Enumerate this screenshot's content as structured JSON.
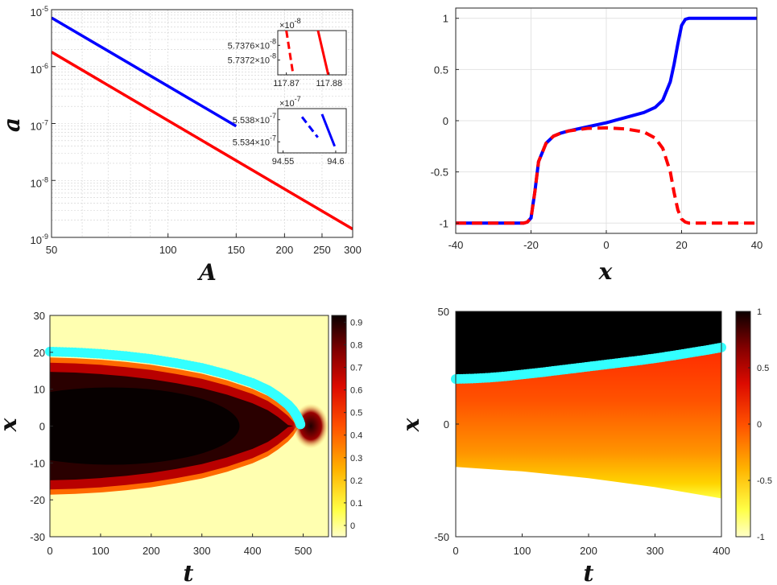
{
  "chart_data": [
    {
      "type": "line",
      "panel": "top-left",
      "xlabel": "A",
      "ylabel": "a",
      "x_scale": "log",
      "y_scale": "log",
      "xlim": [
        50,
        300
      ],
      "ylim": [
        1e-09,
        1e-05
      ],
      "grid": true,
      "x_ticks": [
        "50",
        "100",
        "150",
        "200",
        "250",
        "300"
      ],
      "x_tick_values": [
        50,
        100,
        150,
        200,
        250,
        300
      ],
      "y_ticks": [
        {
          "base": "10",
          "exp": "-9",
          "value": 1e-09
        },
        {
          "base": "10",
          "exp": "-8",
          "value": 1e-08
        },
        {
          "base": "10",
          "exp": "-7",
          "value": 1e-07
        },
        {
          "base": "10",
          "exp": "-6",
          "value": 1e-06
        },
        {
          "base": "10",
          "exp": "-5",
          "value": 1e-05
        }
      ],
      "series": [
        {
          "color": "#0000ff",
          "style": "solid",
          "x": [
            50,
            150
          ],
          "y": [
            7.2e-06,
            9e-08
          ]
        },
        {
          "color": "#ff0000",
          "style": "solid",
          "x": [
            50,
            300
          ],
          "y": [
            1.8e-06,
            1.4e-09
          ]
        }
      ],
      "insets": [
        {
          "position": "upper",
          "multiplier": "×10",
          "multiplier_exp": "-8",
          "xlim": [
            117.868,
            117.884
          ],
          "ylim": [
            5.7368,
            5.738
          ],
          "x_ticks": [
            "117.87",
            "117.88"
          ],
          "x_tick_values": [
            117.87,
            117.88
          ],
          "y_ticks": [
            {
              "label": "5.7376×10",
              "exp": "-8",
              "value": 5.7376
            },
            {
              "label": "5.7372×10",
              "exp": "-8",
              "value": 5.7372
            }
          ],
          "series": [
            {
              "color": "#ff0000",
              "style": "dashed",
              "x": [
                117.87,
                117.8716
              ],
              "y": [
                5.738,
                5.7368
              ]
            },
            {
              "color": "#ff0000",
              "style": "solid",
              "x": [
                117.8774,
                117.8798
              ],
              "y": [
                5.738,
                5.7368
              ]
            }
          ]
        },
        {
          "position": "lower",
          "multiplier": "×10",
          "multiplier_exp": "-7",
          "xlim": [
            94.545,
            94.61
          ],
          "ylim": [
            5.532,
            5.54
          ],
          "x_ticks": [
            "94.55",
            "94.6"
          ],
          "x_tick_values": [
            94.55,
            94.6
          ],
          "y_ticks": [
            {
              "label": "5.538×10",
              "exp": "-7",
              "value": 5.538
            },
            {
              "label": "5.534×10",
              "exp": "-7",
              "value": 5.534
            }
          ],
          "series": [
            {
              "color": "#0000ff",
              "style": "dashed",
              "x": [
                94.568,
                94.583
              ],
              "y": [
                5.5385,
                5.5348
              ]
            },
            {
              "color": "#0000ff",
              "style": "solid",
              "x": [
                94.587,
                94.599
              ],
              "y": [
                5.539,
                5.5332
              ]
            }
          ]
        }
      ]
    },
    {
      "type": "line",
      "panel": "top-right",
      "xlabel": "x",
      "ylabel": "",
      "xlim": [
        -40,
        40
      ],
      "ylim": [
        -1.1,
        1.1
      ],
      "grid": true,
      "x_ticks": [
        "-40",
        "-20",
        "0",
        "20",
        "40"
      ],
      "x_tick_values": [
        -40,
        -20,
        0,
        20,
        40
      ],
      "y_ticks": [
        "-1",
        "-0.5",
        "0",
        "0.5",
        "1"
      ],
      "y_tick_values": [
        -1,
        -0.5,
        0,
        0.5,
        1
      ],
      "series": [
        {
          "color": "#0000ff",
          "style": "solid",
          "x": [
            -40,
            -22,
            -21,
            -20,
            -19,
            -18,
            -16,
            -14,
            -12,
            -10,
            -5,
            0,
            5,
            10,
            13,
            15,
            17,
            18,
            19,
            20,
            21,
            22,
            24,
            40
          ],
          "y": [
            -1,
            -1,
            -0.99,
            -0.95,
            -0.7,
            -0.4,
            -0.22,
            -0.15,
            -0.12,
            -0.1,
            -0.06,
            -0.02,
            0.03,
            0.08,
            0.13,
            0.2,
            0.38,
            0.55,
            0.75,
            0.93,
            0.99,
            1,
            1,
            1
          ]
        },
        {
          "color": "#ff0000",
          "style": "dashed",
          "x": [
            -40,
            -22,
            -21,
            -20,
            -19,
            -18,
            -16,
            -14,
            -12,
            -10,
            -5,
            0,
            5,
            10,
            13,
            15,
            17,
            18,
            19,
            20,
            21,
            22,
            24,
            40
          ],
          "y": [
            -1,
            -1,
            -0.99,
            -0.95,
            -0.7,
            -0.4,
            -0.22,
            -0.15,
            -0.12,
            -0.1,
            -0.075,
            -0.07,
            -0.08,
            -0.11,
            -0.17,
            -0.27,
            -0.5,
            -0.7,
            -0.87,
            -0.96,
            -0.99,
            -1,
            -1,
            -1
          ]
        }
      ]
    },
    {
      "type": "heatmap",
      "panel": "bottom-left",
      "xlabel": "t",
      "ylabel": "x",
      "xlim": [
        0,
        550
      ],
      "ylim": [
        -30,
        30
      ],
      "x_ticks": [
        "0",
        "100",
        "200",
        "300",
        "400",
        "500"
      ],
      "x_tick_values": [
        0,
        100,
        200,
        300,
        400,
        500
      ],
      "y_ticks": [
        "-30",
        "-20",
        "-10",
        "0",
        "10",
        "20",
        "30"
      ],
      "y_tick_values": [
        -30,
        -20,
        -10,
        0,
        10,
        20,
        30
      ],
      "colorbar": {
        "ticks": [
          "0",
          "0.1",
          "0.2",
          "0.3",
          "0.4",
          "0.5",
          "0.6",
          "0.7",
          "0.8",
          "0.9"
        ],
        "tick_values": [
          0,
          0.1,
          0.2,
          0.3,
          0.4,
          0.5,
          0.6,
          0.7,
          0.8,
          0.9
        ],
        "min": -0.05,
        "max": 0.93
      },
      "marker_series": {
        "color": "#33ffff",
        "t": [
          0,
          50,
          100,
          150,
          200,
          250,
          300,
          350,
          400,
          430,
          450,
          470,
          480,
          487,
          492,
          495
        ],
        "x": [
          20.2,
          20.0,
          19.6,
          19.0,
          18.2,
          17.1,
          15.8,
          14.0,
          11.7,
          9.8,
          8.0,
          5.8,
          4.3,
          2.8,
          1.5,
          0.3
        ]
      }
    },
    {
      "type": "heatmap",
      "panel": "bottom-right",
      "xlabel": "t",
      "ylabel": "x",
      "xlim": [
        0,
        400
      ],
      "ylim": [
        -50,
        50
      ],
      "x_ticks": [
        "0",
        "100",
        "200",
        "300",
        "400"
      ],
      "x_tick_values": [
        0,
        100,
        200,
        300,
        400
      ],
      "y_ticks": [
        "-50",
        "0",
        "50"
      ],
      "y_tick_values": [
        -50,
        0,
        50
      ],
      "colorbar": {
        "ticks": [
          "-1",
          "-0.5",
          "0",
          "0.5",
          "1"
        ],
        "tick_values": [
          -1,
          -0.5,
          0,
          0.5,
          1
        ],
        "min": -1,
        "max": 1
      },
      "marker_series": {
        "color": "#33ffff",
        "t": [
          0,
          25,
          50,
          75,
          100,
          125,
          150,
          175,
          200,
          225,
          250,
          275,
          300,
          325,
          350,
          375,
          400
        ],
        "x": [
          20.0,
          20.2,
          20.6,
          21.2,
          22.0,
          22.8,
          23.7,
          24.6,
          25.5,
          26.4,
          27.3,
          28.2,
          29.2,
          30.3,
          31.5,
          32.7,
          34.0
        ]
      }
    }
  ]
}
